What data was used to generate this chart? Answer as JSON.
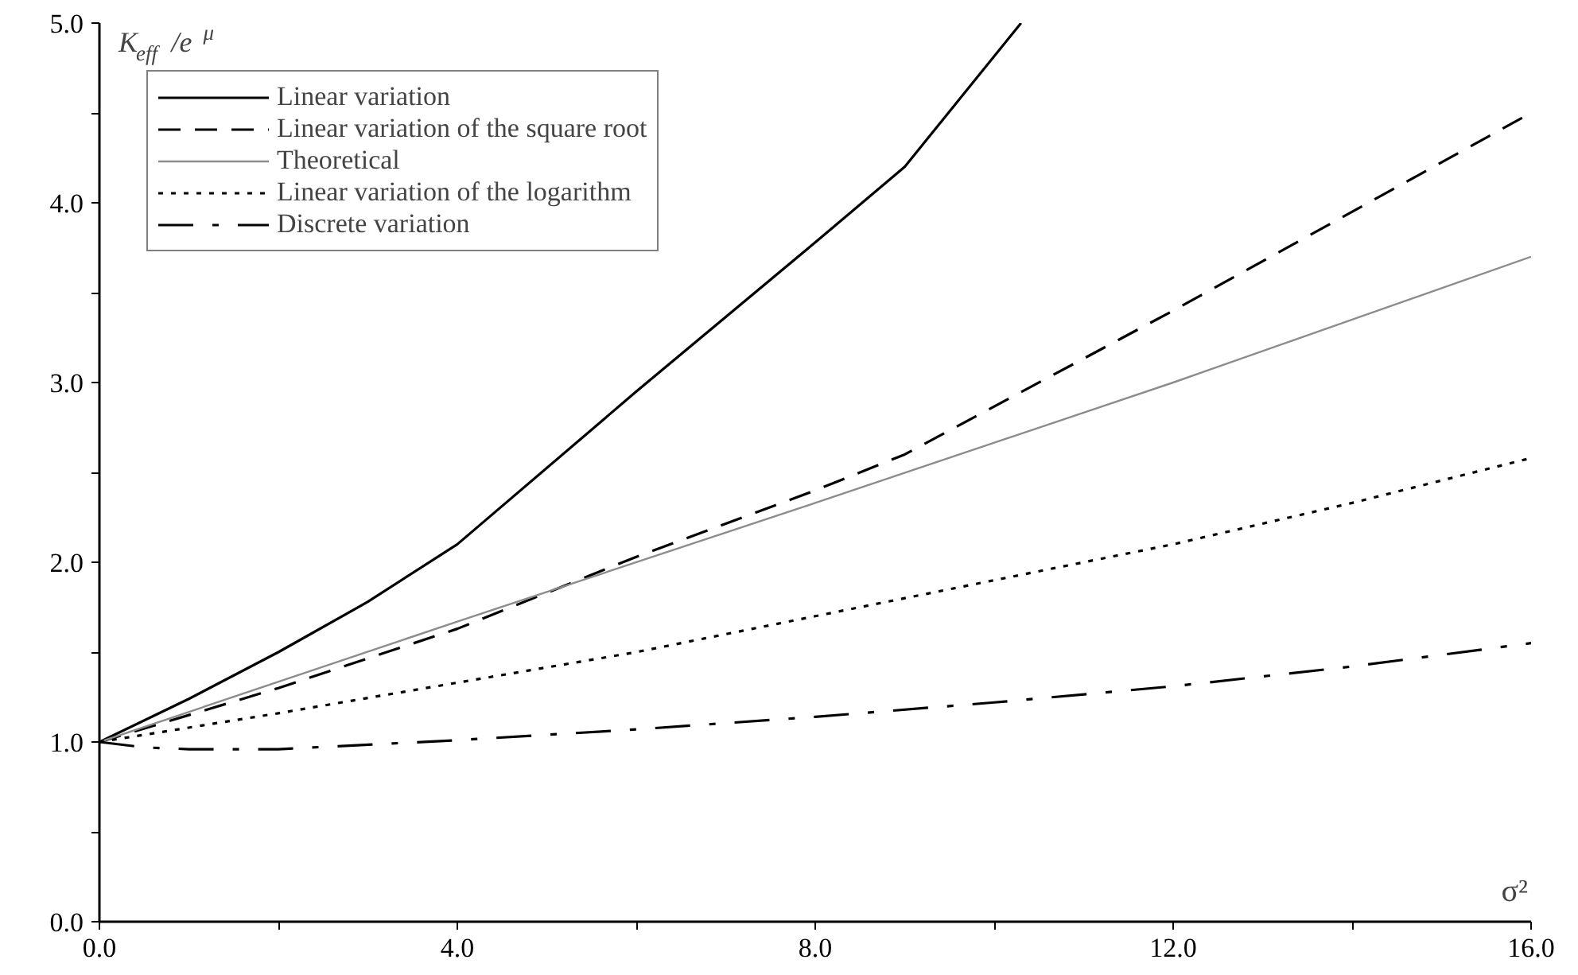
{
  "chart_data": {
    "type": "line",
    "xlabel": "σ²",
    "ylabel": "K$_{eff}$/e$^{μ}$",
    "xlim": [
      0,
      16
    ],
    "ylim": [
      0,
      5
    ],
    "xticks": [
      {
        "value": 0,
        "label": "0.0"
      },
      {
        "value": 2,
        "label": null
      },
      {
        "value": 4,
        "label": "4.0"
      },
      {
        "value": 6,
        "label": null
      },
      {
        "value": 8,
        "label": "8.0"
      },
      {
        "value": 10,
        "label": null
      },
      {
        "value": 12,
        "label": "12.0"
      },
      {
        "value": 14,
        "label": null
      },
      {
        "value": 16,
        "label": "16.0"
      }
    ],
    "yticks": [
      {
        "value": 0,
        "label": "0.0"
      },
      {
        "value": 0.5,
        "label": null
      },
      {
        "value": 1,
        "label": "1.0"
      },
      {
        "value": 1.5,
        "label": null
      },
      {
        "value": 2,
        "label": "2.0"
      },
      {
        "value": 2.5,
        "label": null
      },
      {
        "value": 3,
        "label": "3.0"
      },
      {
        "value": 3.5,
        "label": null
      },
      {
        "value": 4,
        "label": "4.0"
      },
      {
        "value": 4.5,
        "label": null
      },
      {
        "value": 5,
        "label": "5.0"
      }
    ],
    "grid": false,
    "legend": "top left",
    "marker": "none",
    "series": [
      {
        "name": "Linear variation",
        "color": "#000000",
        "line_style": "solid",
        "x": [
          0,
          1,
          2,
          3,
          4,
          6,
          8,
          9,
          10.3
        ],
        "values": [
          1.0,
          1.24,
          1.5,
          1.78,
          2.1,
          2.95,
          3.78,
          4.2,
          5.0
        ]
      },
      {
        "name": "Linear variation of the square root",
        "color": "#000000",
        "line_style": "dashed",
        "x": [
          0,
          1,
          2,
          4,
          6,
          8,
          9,
          12,
          16
        ],
        "values": [
          1.0,
          1.15,
          1.3,
          1.63,
          2.03,
          2.4,
          2.6,
          3.4,
          4.5
        ]
      },
      {
        "name": "Theoretical",
        "color": "#8c8c8c",
        "line_style": "solid",
        "x": [
          0,
          4,
          8,
          12,
          16
        ],
        "values": [
          1.0,
          1.67,
          2.33,
          3.0,
          3.7
        ]
      },
      {
        "name": "Linear variation of the logarithm",
        "color": "#000000",
        "line_style": "dotted",
        "x": [
          0,
          2,
          4,
          6,
          8,
          10,
          12,
          14,
          16
        ],
        "values": [
          1.0,
          1.16,
          1.33,
          1.5,
          1.7,
          1.9,
          2.1,
          2.33,
          2.58
        ]
      },
      {
        "name": "Discrete variation",
        "color": "#000000",
        "line_style": "dashdot",
        "x": [
          0,
          0.5,
          1,
          2,
          4,
          6,
          8,
          10,
          12,
          14,
          16
        ],
        "values": [
          1.0,
          0.97,
          0.96,
          0.96,
          1.01,
          1.07,
          1.14,
          1.22,
          1.31,
          1.42,
          1.55
        ]
      }
    ]
  }
}
